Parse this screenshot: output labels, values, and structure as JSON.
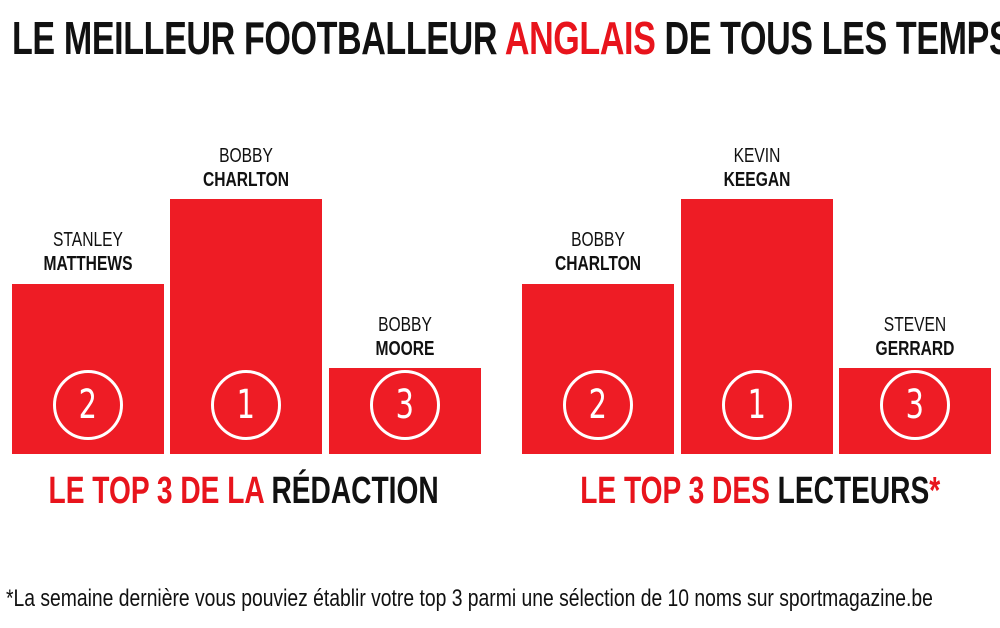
{
  "title": {
    "part1": "LE MEILLEUR FOOTBALLEUR ",
    "accent": "ANGLAIS",
    "part2": " DE TOUS LES TEMPS",
    "accent_color": "#e8141c"
  },
  "podiums": [
    {
      "caption": {
        "red": "LE TOP 3 DE LA ",
        "dark": "RÉDACTION"
      },
      "places": [
        {
          "rank": "2",
          "first": "STANLEY",
          "last": "MATTHEWS"
        },
        {
          "rank": "1",
          "first": "BOBBY",
          "last": "CHARLTON"
        },
        {
          "rank": "3",
          "first": "BOBBY",
          "last": "MOORE"
        }
      ]
    },
    {
      "caption": {
        "red": "LE TOP 3 DES ",
        "dark": "LECTEURS",
        "mark": "*"
      },
      "places": [
        {
          "rank": "2",
          "first": "BOBBY",
          "last": "CHARLTON"
        },
        {
          "rank": "1",
          "first": "KEVIN",
          "last": "KEEGAN"
        },
        {
          "rank": "3",
          "first": "STEVEN",
          "last": "GERRARD"
        }
      ]
    }
  ],
  "footnote": "*La semaine dernière vous pouviez établir votre top 3 parmi une sélection de 10 noms sur sportmagazine.be",
  "colors": {
    "bar": "#ee1c25",
    "text": "#111111"
  }
}
